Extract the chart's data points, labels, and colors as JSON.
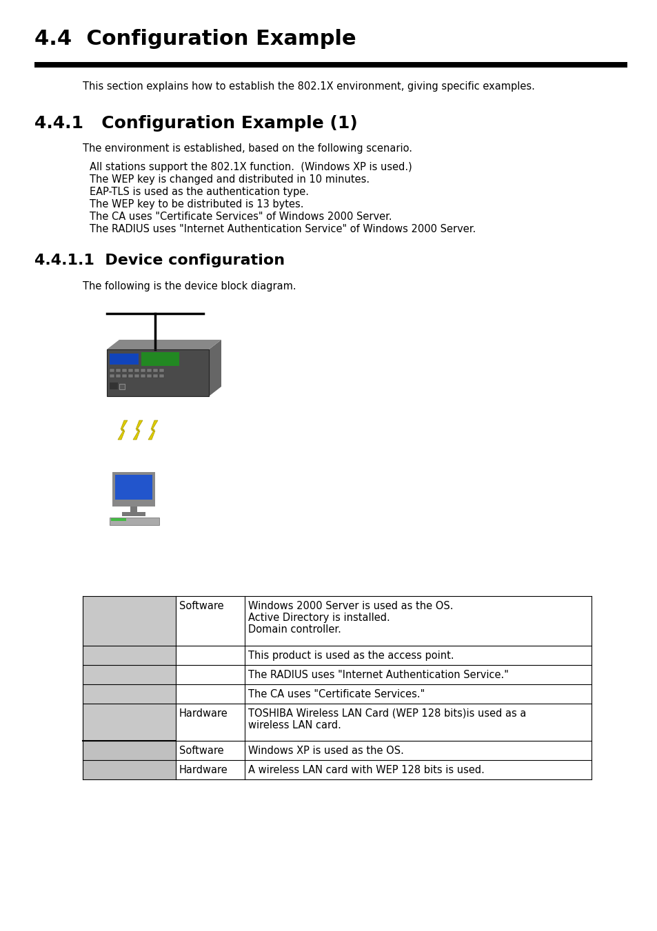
{
  "title": "4.4  Configuration Example",
  "section_intro": "This section explains how to establish the 802.1X environment, giving specific examples.",
  "subsection1_title": "4.4.1   Configuration Example (1)",
  "subsection1_intro": "The environment is established, based on the following scenario.",
  "scenario_lines": [
    "All stations support the 802.1X function.  (Windows XP is used.)",
    "The WEP key is changed and distributed in 10 minutes.",
    "EAP-TLS is used as the authentication type.",
    "The WEP key to be distributed is 13 bytes.",
    "The CA uses \"Certificate Services\" of Windows 2000 Server.",
    "The RADIUS uses \"Internet Authentication Service\" of Windows 2000 Server."
  ],
  "subsection2_title": "4.4.1.1  Device configuration",
  "diagram_caption": "The following is the device block diagram.",
  "bg_color": "#ffffff",
  "text_color": "#000000",
  "title_fontsize": 22,
  "subsection_fontsize": 18,
  "subsubsection_fontsize": 16,
  "body_fontsize": 10.5,
  "table_rows": [
    [
      "",
      "Software",
      "Windows 2000 Server is used as the OS.\nActive Directory is installed.\nDomain controller."
    ],
    [
      "",
      "",
      "This product is used as the access point."
    ],
    [
      "",
      "",
      "The RADIUS uses \"Internet Authentication Service.\""
    ],
    [
      "",
      "",
      "The CA uses \"Certificate Services.\""
    ],
    [
      "",
      "Hardware",
      "TOSHIBA Wireless LAN Card (WEP 128 bits)is used as a\nwireless LAN card."
    ],
    [
      "",
      "Software",
      "Windows XP is used as the OS."
    ],
    [
      "",
      "Hardware",
      "A wireless LAN card with WEP 128 bits is used."
    ]
  ]
}
